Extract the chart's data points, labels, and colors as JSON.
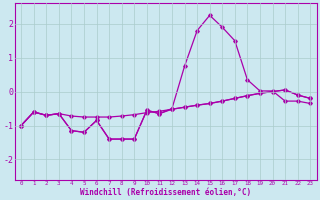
{
  "xlabel": "Windchill (Refroidissement éolien,°C)",
  "bg_color": "#cce8f0",
  "line_color": "#aa00aa",
  "grid_color": "#aacccc",
  "xlim": [
    -0.5,
    23.5
  ],
  "ylim": [
    -2.6,
    2.6
  ],
  "yticks": [
    -2,
    -1,
    0,
    1,
    2
  ],
  "xticks": [
    0,
    1,
    2,
    3,
    4,
    5,
    6,
    7,
    8,
    9,
    10,
    11,
    12,
    13,
    14,
    15,
    16,
    17,
    18,
    19,
    20,
    21,
    22,
    23
  ],
  "series1": [
    [
      0,
      -1.0
    ],
    [
      1,
      -0.6
    ],
    [
      2,
      -0.7
    ],
    [
      3,
      -0.65
    ],
    [
      4,
      -1.15
    ],
    [
      5,
      -1.2
    ],
    [
      6,
      -0.85
    ],
    [
      7,
      -1.4
    ],
    [
      8,
      -1.4
    ],
    [
      9,
      -1.4
    ],
    [
      10,
      -0.55
    ],
    [
      11,
      -0.65
    ],
    [
      12,
      -0.5
    ],
    [
      13,
      0.75
    ],
    [
      14,
      1.8
    ],
    [
      15,
      2.25
    ],
    [
      16,
      1.9
    ],
    [
      17,
      1.5
    ],
    [
      18,
      0.35
    ],
    [
      19,
      0.02
    ],
    [
      20,
      0.02
    ],
    [
      21,
      -0.28
    ],
    [
      22,
      -0.28
    ],
    [
      23,
      -0.35
    ]
  ],
  "series2": [
    [
      0,
      -1.0
    ],
    [
      1,
      -0.6
    ],
    [
      2,
      -0.7
    ],
    [
      3,
      -0.65
    ],
    [
      4,
      -0.72
    ],
    [
      5,
      -0.75
    ],
    [
      6,
      -0.75
    ],
    [
      7,
      -0.75
    ],
    [
      8,
      -0.72
    ],
    [
      9,
      -0.68
    ],
    [
      10,
      -0.62
    ],
    [
      11,
      -0.58
    ],
    [
      12,
      -0.52
    ],
    [
      13,
      -0.46
    ],
    [
      14,
      -0.4
    ],
    [
      15,
      -0.35
    ],
    [
      16,
      -0.28
    ],
    [
      17,
      -0.2
    ],
    [
      18,
      -0.12
    ],
    [
      19,
      -0.05
    ],
    [
      20,
      0.0
    ],
    [
      21,
      0.05
    ],
    [
      22,
      -0.1
    ],
    [
      23,
      -0.2
    ]
  ],
  "series3": [
    [
      0,
      -1.0
    ],
    [
      1,
      -0.6
    ],
    [
      2,
      -0.7
    ],
    [
      3,
      -0.65
    ],
    [
      4,
      -1.15
    ],
    [
      5,
      -1.2
    ],
    [
      6,
      -0.85
    ],
    [
      7,
      -1.4
    ],
    [
      8,
      -1.4
    ],
    [
      9,
      -1.4
    ],
    [
      10,
      -0.55
    ],
    [
      11,
      -0.65
    ],
    [
      12,
      -0.52
    ],
    [
      13,
      -0.46
    ],
    [
      14,
      -0.4
    ],
    [
      15,
      -0.35
    ],
    [
      16,
      -0.28
    ],
    [
      17,
      -0.2
    ],
    [
      18,
      -0.12
    ],
    [
      19,
      -0.05
    ],
    [
      20,
      0.0
    ],
    [
      21,
      0.05
    ],
    [
      22,
      -0.1
    ],
    [
      23,
      -0.2
    ]
  ]
}
